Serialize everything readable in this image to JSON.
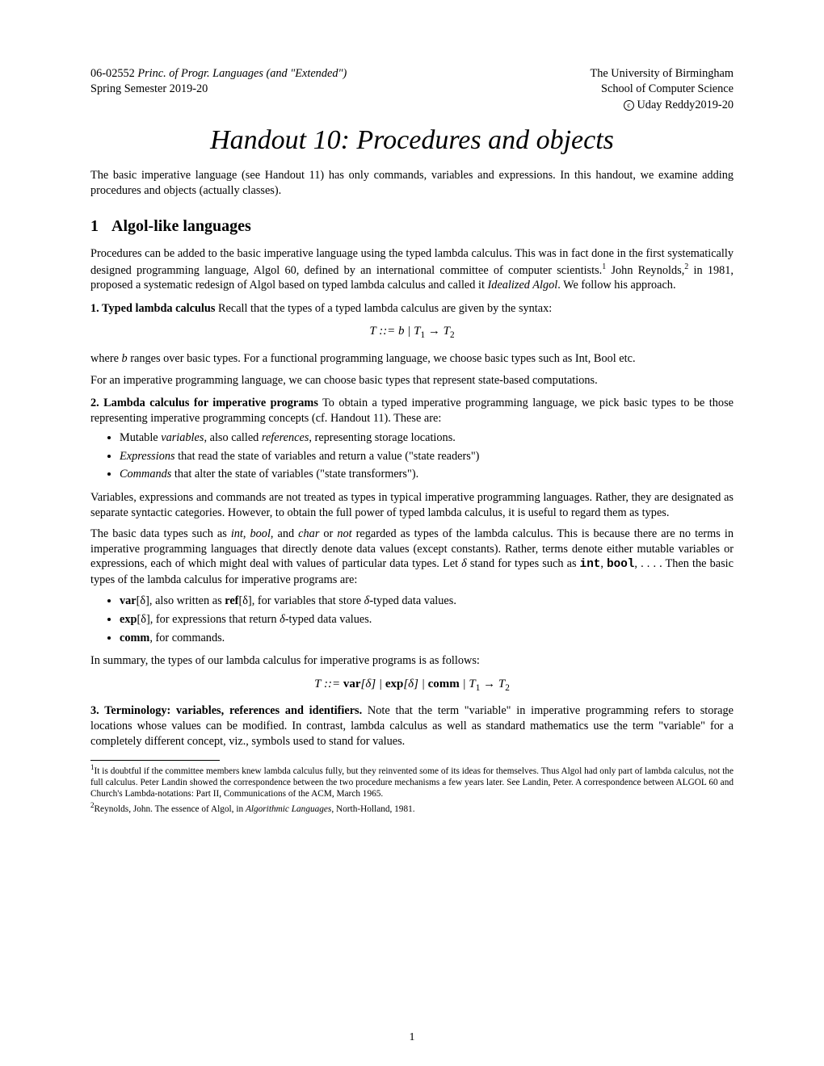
{
  "header": {
    "course_code": "06-02552 ",
    "course_title": "Princ. of Progr. Languages (and \"Extended\")",
    "semester": "Spring Semester 2019-20",
    "university": "The University of Birmingham",
    "school": "School of Computer Science",
    "copyright": " Uday Reddy2019-20"
  },
  "title": "Handout 10: Procedures and objects",
  "intro": "The basic imperative language (see Handout 11) has only commands, variables and expressions. In this handout, we examine adding procedures and objects (actually classes).",
  "section1": {
    "num": "1",
    "title": "Algol-like languages",
    "p1a": "Procedures can be added to the basic imperative language using the typed lambda calculus. This was in fact done in the first systematically designed programming language, Algol 60, defined by an international committee of computer scientists.",
    "p1b": " John Reynolds,",
    "p1c": " in 1981, proposed a systematic redesign of Algol based on typed lambda calculus and called it ",
    "p1_idealized": "Idealized Algol",
    "p1d": ". We follow his approach.",
    "sub1_head": "1. Typed lambda calculus",
    "sub1_body": " Recall that the types of a typed lambda calculus are given by the syntax:",
    "formula1_T": "T ::= b | T",
    "formula1_s1": "1",
    "formula1_arrow": " → T",
    "formula1_s2": "2",
    "sub1_p2a": "where ",
    "sub1_p2_b": "b",
    "sub1_p2b": " ranges over basic types. For a functional programming language, we choose basic types such as Int, Bool etc.",
    "sub1_p3": "For an imperative programming language, we can choose basic types that represent state-based computations.",
    "sub2_head": "2. Lambda calculus for imperative programs",
    "sub2_body": " To obtain a typed imperative programming language, we pick basic types to be those representing imperative programming concepts (cf. Handout 11). These are:",
    "bullets1": {
      "b1a": "Mutable ",
      "b1b": "variables",
      "b1c": ", also called ",
      "b1d": "references",
      "b1e": ", representing storage locations.",
      "b2a": "Expressions",
      "b2b": " that read the state of variables and return a value (\"state readers\")",
      "b3a": "Commands",
      "b3b": " that alter the state of variables (\"state transformers\")."
    },
    "sub2_p2": "Variables, expressions and commands are not treated as types in typical imperative programming languages. Rather, they are designated as separate syntactic categories. However, to obtain the full power of typed lambda calculus, it is useful to regard them as types.",
    "sub2_p3a": "The basic data types such as ",
    "sub2_p3_int": "int",
    "sub2_p3b": ", ",
    "sub2_p3_bool": "bool",
    "sub2_p3c": ", and ",
    "sub2_p3_char": "char",
    "sub2_p3d": " or ",
    "sub2_p3_not": "not",
    "sub2_p3e": " regarded as types of the lambda calculus. This is because there are no terms in imperative programming languages that directly denote data values (except constants). Rather, terms denote either mutable variables or expressions, each of which might deal with values of particular data types. Let ",
    "sub2_p3_delta": "δ",
    "sub2_p3f": " stand for types such as ",
    "sub2_p3_tt_int": "int",
    "sub2_p3g": ", ",
    "sub2_p3_tt_bool": "bool",
    "sub2_p3h": ", . . . . Then the basic types of the lambda calculus for imperative programs are:",
    "bullets2": {
      "b1a": "var",
      "b1b": "[δ], also written as ",
      "b1c": "ref",
      "b1d": "[δ], for variables that store ",
      "b1e": "δ",
      "b1f": "-typed data values.",
      "b2a": "exp",
      "b2b": "[δ], for expressions that return ",
      "b2c": "δ",
      "b2d": "-typed data values.",
      "b3a": "comm",
      "b3b": ", for commands."
    },
    "sub2_p4": "In summary, the types of our lambda calculus for imperative programs is as follows:",
    "formula2_a": "T ::= ",
    "formula2_var": "var",
    "formula2_b": "[δ] | ",
    "formula2_exp": "exp",
    "formula2_c": "[δ] | ",
    "formula2_comm": "comm",
    "formula2_d": " | T",
    "formula2_s1": "1",
    "formula2_e": " → T",
    "formula2_s2": "2",
    "sub3_head": "3. Terminology: variables, references and identifiers.",
    "sub3_body": " Note that the term \"variable\" in imperative programming refers to storage locations whose values can be modified. In contrast, lambda calculus as well as standard mathematics use the term \"variable\" for a completely different concept, viz., symbols used to stand for values."
  },
  "footnotes": {
    "f1num": "1",
    "f1": "It is doubtful if the committee members knew lambda calculus fully, but they reinvented some of its ideas for themselves. Thus Algol had only part of lambda calculus, not the full calculus. Peter Landin showed the correspondence between the two procedure mechanisms a few years later. See Landin, Peter. A correspondence between ALGOL 60 and Church's Lambda-notations: Part II, Communications of the ACM, March 1965.",
    "f2num": "2",
    "f2a": "Reynolds, John. The essence of Algol, in ",
    "f2b": "Algorithmic Languages",
    "f2c": ", North-Holland, 1981."
  },
  "page_number": "1"
}
